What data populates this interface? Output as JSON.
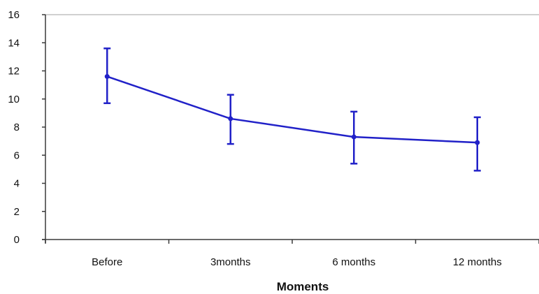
{
  "chart_data": {
    "type": "line",
    "categories": [
      "Before",
      "3months",
      "6 months",
      "12 months"
    ],
    "series": [
      {
        "values": [
          11.6,
          8.6,
          7.3,
          6.9
        ],
        "error_low": [
          9.7,
          6.8,
          5.4,
          4.9
        ],
        "error_high": [
          13.6,
          10.3,
          9.1,
          8.7
        ]
      }
    ],
    "yticks": [
      "0",
      "2",
      "4",
      "6",
      "8",
      "10",
      "12",
      "14",
      "16"
    ],
    "ylim": [
      0,
      16
    ],
    "xlabel": "Moments",
    "ylabel": "",
    "title": "",
    "grid": false,
    "legend": "none",
    "colors": {
      "series": "#2121c8",
      "axis": "#3a3a3a",
      "top_rule": "#c0c0c0"
    }
  }
}
